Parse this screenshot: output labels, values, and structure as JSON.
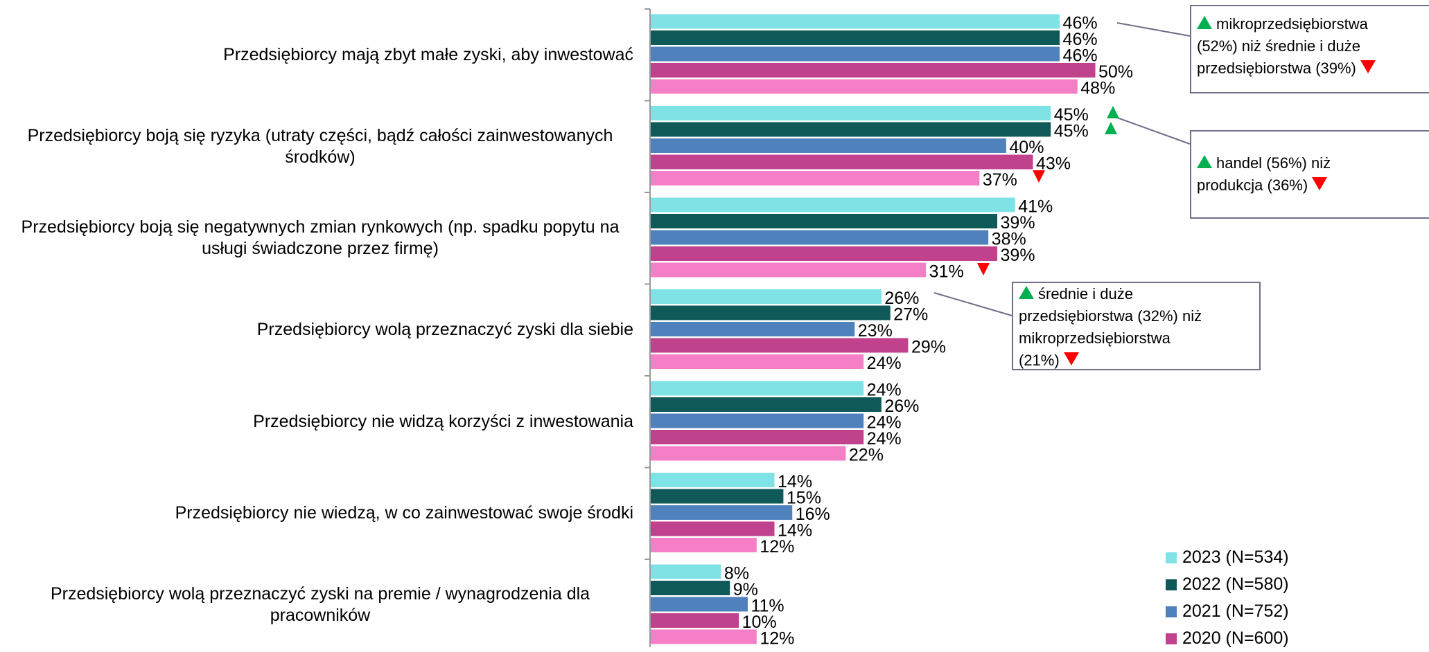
{
  "chart_data": {
    "type": "hbar",
    "categories": [
      "Przedsiębiorcy mają zbyt małe zyski, aby inwestować",
      "Przedsiębiorcy boją się ryzyka (utraty części, bądź całości zainwestowanych środków)",
      "Przedsiębiorcy boją się negatywnych zmian rynkowych (np. spadku popytu na usługi świadczone przez firmę)",
      "Przedsiębiorcy wolą przeznaczyć zyski dla siebie",
      "Przedsiębiorcy nie widzą korzyści z inwestowania",
      "Przedsiębiorcy nie wiedzą, w co zainwestować swoje środki",
      "Przedsiębiorcy wolą przeznaczyć zyski na premie / wynagrodzenia dla pracowników"
    ],
    "series": [
      {
        "name": "2023 (N=534)",
        "color": "#7fe3e6",
        "values": [
          46,
          45,
          41,
          26,
          24,
          14,
          8
        ],
        "value_labels": [
          "46%",
          "45%",
          "41%",
          "26%",
          "24%",
          "14%",
          "8%"
        ]
      },
      {
        "name": "2022 (N=580)",
        "color": "#0f5959",
        "values": [
          46,
          45,
          39,
          27,
          26,
          15,
          9
        ],
        "value_labels": [
          "46%",
          "45%",
          "39%",
          "27%",
          "26%",
          "15%",
          "9%"
        ]
      },
      {
        "name": "2021 (N=752)",
        "color": "#4f81bd",
        "values": [
          46,
          40,
          38,
          23,
          24,
          16,
          11
        ],
        "value_labels": [
          "46%",
          "40%",
          "38%",
          "23%",
          "24%",
          "16%",
          "11%"
        ]
      },
      {
        "name": "2020 (N=600)",
        "color": "#c0418c",
        "values": [
          50,
          43,
          39,
          29,
          24,
          14,
          10
        ],
        "value_labels": [
          "50%",
          "43%",
          "39%",
          "29%",
          "24%",
          "14%",
          "10%"
        ]
      },
      {
        "color": "#f57fc7",
        "values": [
          48,
          37,
          31,
          24,
          22,
          12,
          12
        ],
        "value_labels": [
          "48%",
          "37%",
          "31%",
          "24%",
          "22%",
          "12%",
          "12%"
        ]
      }
    ],
    "xlim": [
      0,
      100
    ],
    "annotations": [
      [
        "mikroprzedsiębiorstwa",
        "(52%) niż średnie i duże",
        "przedsiębiorstwa (39%)"
      ],
      [
        "handel (56%) niż",
        "produkcja (36%)"
      ],
      [
        "średnie i duże",
        "przedsiębiorstwa (32%) niż",
        "mikroprzedsiębiorstwa",
        "(21%)"
      ]
    ]
  }
}
